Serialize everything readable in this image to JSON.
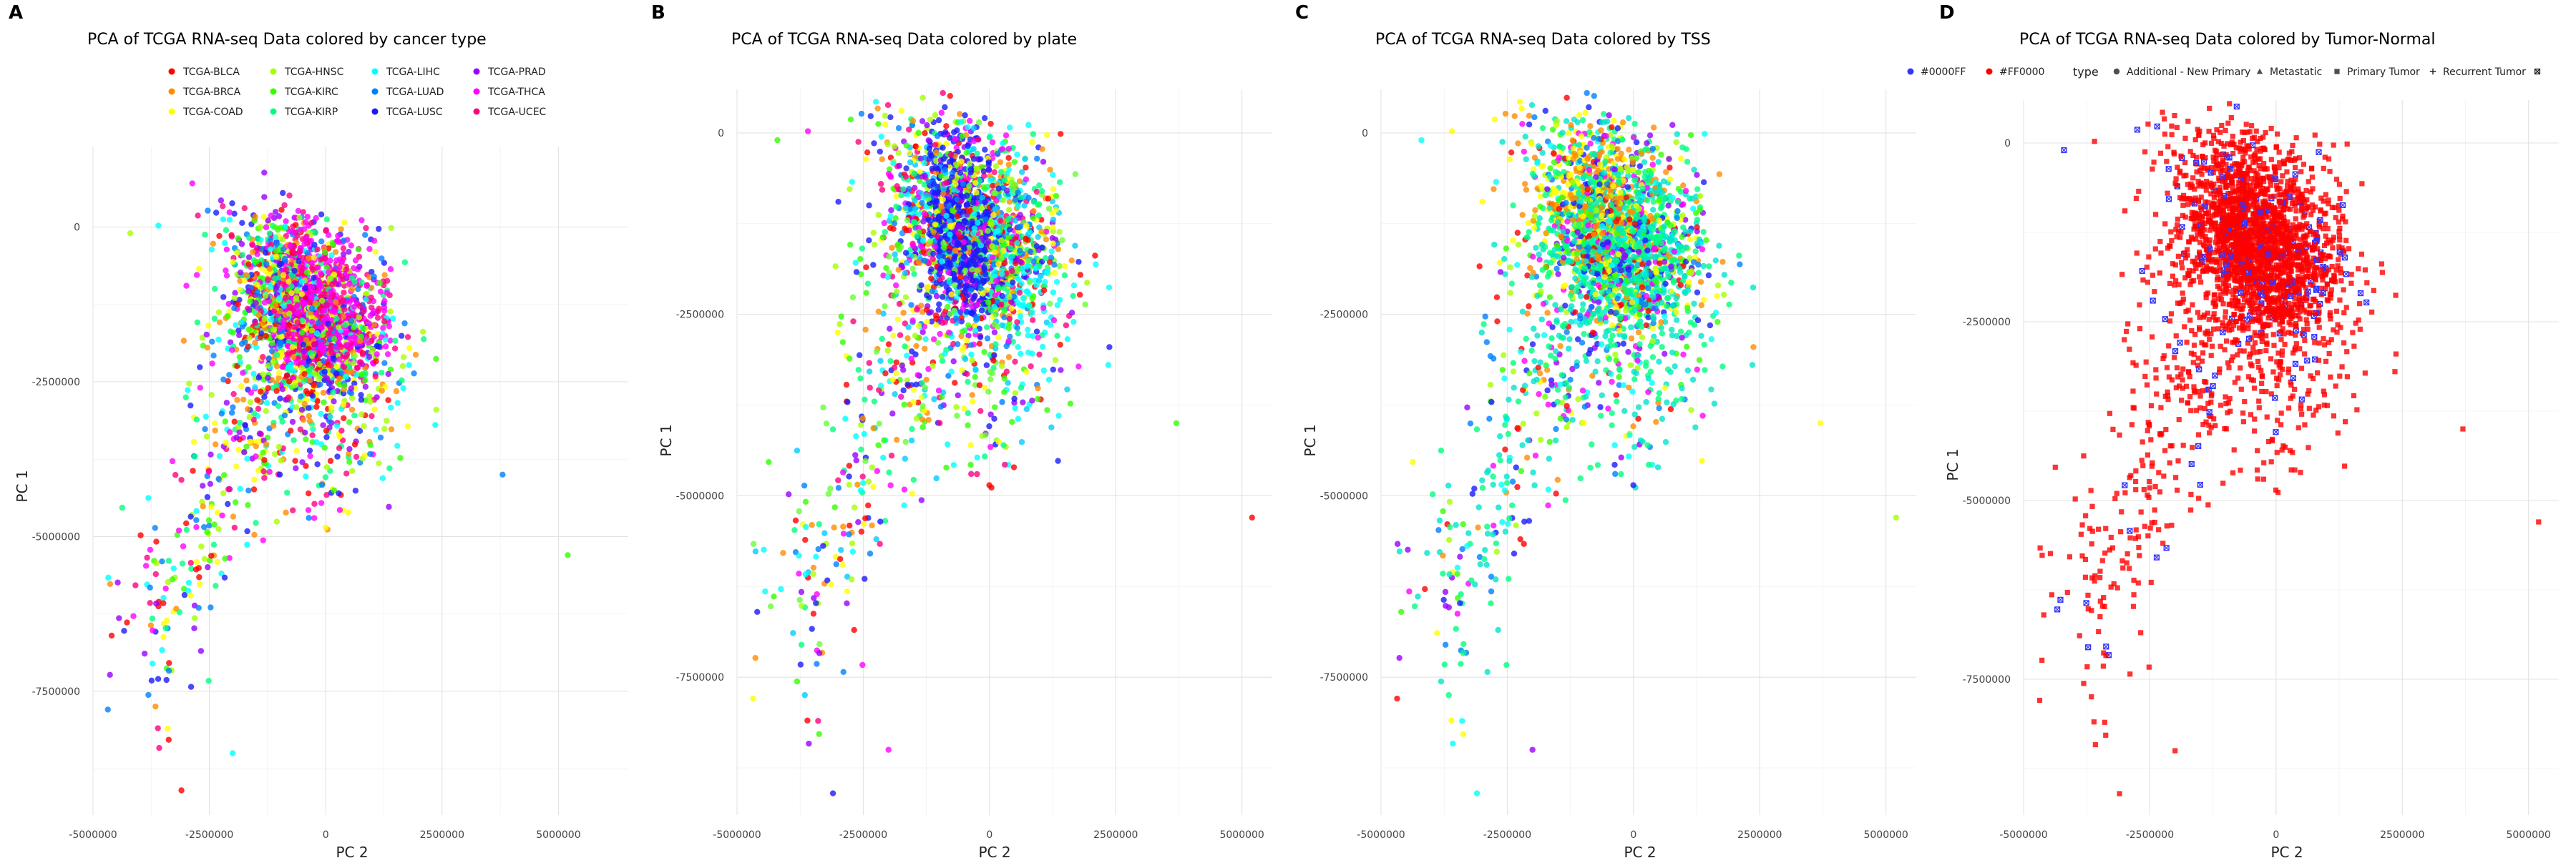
{
  "figure": {
    "panel_letters": [
      "A",
      "B",
      "C",
      "D"
    ]
  },
  "chart_data": [
    {
      "type": "scatter",
      "panel": "A",
      "title": "PCA of TCGA RNA-seq Data colored by cancer type",
      "xlabel": "PC 2",
      "ylabel": "PC 1",
      "xlim": [
        -5000000,
        6500000
      ],
      "ylim": [
        -9500000,
        1300000
      ],
      "xticks": [
        -5000000,
        -2500000,
        0,
        2500000,
        5000000
      ],
      "xtick_labels": [
        "-5000000",
        "-2500000",
        "0",
        "2500000",
        "5000000"
      ],
      "yticks": [
        0,
        -2500000,
        -5000000,
        -7500000
      ],
      "ytick_labels": [
        "0",
        "-2500000",
        "-5000000",
        "-7500000"
      ],
      "grid": true,
      "legend_position": "top",
      "legend": [
        {
          "name": "TCGA-BLCA",
          "color": "#FF0000"
        },
        {
          "name": "TCGA-BRCA",
          "color": "#FF8C00"
        },
        {
          "name": "TCGA-COAD",
          "color": "#FFFF00"
        },
        {
          "name": "TCGA-HNSC",
          "color": "#A6FF00"
        },
        {
          "name": "TCGA-KIRC",
          "color": "#33FF00"
        },
        {
          "name": "TCGA-KIRP",
          "color": "#00FF80"
        },
        {
          "name": "TCGA-LIHC",
          "color": "#00FFFF"
        },
        {
          "name": "TCGA-LUAD",
          "color": "#0080FF"
        },
        {
          "name": "TCGA-LUSC",
          "color": "#1A1AFF"
        },
        {
          "name": "TCGA-PRAD",
          "color": "#9900FF"
        },
        {
          "name": "TCGA-THCA",
          "color": "#FF00FF"
        },
        {
          "name": "TCGA-UCEC",
          "color": "#FF0080"
        }
      ],
      "outliers": [
        {
          "x": 5200000,
          "y": -5300000,
          "color": "#33FF00"
        },
        {
          "x": 3800000,
          "y": -4000000,
          "color": "#0080FF"
        },
        {
          "x": -4600000,
          "y": -6600000,
          "color": "#FF0000"
        },
        {
          "x": -3100000,
          "y": -9100000,
          "color": "#FF0000"
        },
        {
          "x": -2000000,
          "y": -8500000,
          "color": "#00FFFF"
        },
        {
          "x": -4200000,
          "y": -100000,
          "color": "#A6FF00"
        },
        {
          "x": -3600000,
          "y": -7300000,
          "color": "#1A1AFF"
        }
      ]
    },
    {
      "type": "scatter",
      "panel": "B",
      "title": "PCA of TCGA RNA-seq Data colored by plate",
      "xlabel": "PC 2",
      "ylabel": "PC 1",
      "xlim": [
        -5000000,
        5600000
      ],
      "ylim": [
        -9400000,
        600000
      ],
      "xticks": [
        -5000000,
        -2500000,
        0,
        2500000,
        5000000
      ],
      "xtick_labels": [
        "-5000000",
        "-2500000",
        "0",
        "2500000",
        "5000000"
      ],
      "yticks": [
        0,
        -2500000,
        -5000000,
        -7500000
      ],
      "ytick_labels": [
        "0",
        "-2500000",
        "-5000000",
        "-7500000"
      ],
      "grid": true,
      "legend_position": "none",
      "outliers": [
        {
          "x": 5200000,
          "y": -5300000,
          "color": "#FF0000"
        },
        {
          "x": 3700000,
          "y": -4000000,
          "color": "#33FF00"
        },
        {
          "x": -4600000,
          "y": -6600000,
          "color": "#1A1AFF"
        },
        {
          "x": -3100000,
          "y": -9100000,
          "color": "#1A1AFF"
        },
        {
          "x": -2000000,
          "y": -8500000,
          "color": "#FF00FF"
        },
        {
          "x": -4200000,
          "y": -100000,
          "color": "#33FF00"
        }
      ]
    },
    {
      "type": "scatter",
      "panel": "C",
      "title": "PCA of TCGA RNA-seq Data colored by TSS",
      "xlabel": "PC 2",
      "ylabel": "PC 1",
      "xlim": [
        -5000000,
        5600000
      ],
      "ylim": [
        -9400000,
        600000
      ],
      "xticks": [
        -5000000,
        -2500000,
        0,
        2500000,
        5000000
      ],
      "xtick_labels": [
        "-5000000",
        "-2500000",
        "0",
        "2500000",
        "5000000"
      ],
      "yticks": [
        0,
        -2500000,
        -5000000,
        -7500000
      ],
      "ytick_labels": [
        "0",
        "-2500000",
        "-5000000",
        "-7500000"
      ],
      "grid": true,
      "legend_position": "none",
      "outliers": [
        {
          "x": 5200000,
          "y": -5300000,
          "color": "#A6FF00"
        },
        {
          "x": 3700000,
          "y": -4000000,
          "color": "#FFFF00"
        },
        {
          "x": -4600000,
          "y": -6600000,
          "color": "#33FF00"
        },
        {
          "x": -3100000,
          "y": -9100000,
          "color": "#00FFFF"
        },
        {
          "x": -2000000,
          "y": -8500000,
          "color": "#9900FF"
        },
        {
          "x": -4200000,
          "y": -100000,
          "color": "#00FFFF"
        }
      ]
    },
    {
      "type": "scatter",
      "panel": "D",
      "title": "PCA of TCGA RNA-seq Data colored by Tumor-Normal",
      "xlabel": "PC 2",
      "ylabel": "PC 1",
      "xlim": [
        -5000000,
        5600000
      ],
      "ylim": [
        -9400000,
        600000
      ],
      "xticks": [
        -5000000,
        -2500000,
        0,
        2500000,
        5000000
      ],
      "xtick_labels": [
        "-5000000",
        "-2500000",
        "0",
        "2500000",
        "5000000"
      ],
      "yticks": [
        0,
        -2500000,
        -5000000,
        -7500000
      ],
      "ytick_labels": [
        "0",
        "-2500000",
        "-5000000",
        "-7500000"
      ],
      "grid": true,
      "legend_position": "top",
      "color_legend": [
        {
          "name": "#0000FF",
          "color": "#3333FF"
        },
        {
          "name": "#FF0000",
          "color": "#FF0000"
        }
      ],
      "shape_legend_title": "type",
      "shape_legend": [
        {
          "name": "Additional - New Primary",
          "shape": "circle"
        },
        {
          "name": "Metastatic",
          "shape": "triangle"
        },
        {
          "name": "Primary Tumor",
          "shape": "square"
        },
        {
          "name": "Recurrent Tumor",
          "shape": "plus"
        },
        {
          "name": "",
          "shape": "boxcross"
        }
      ],
      "outliers": [
        {
          "x": 5200000,
          "y": -5300000,
          "color": "#FF0000"
        },
        {
          "x": 3700000,
          "y": -4000000,
          "color": "#FF0000"
        },
        {
          "x": -4600000,
          "y": -6600000,
          "color": "#FF0000"
        },
        {
          "x": -3100000,
          "y": -9100000,
          "color": "#FF0000"
        },
        {
          "x": -2000000,
          "y": -8500000,
          "color": "#FF0000"
        },
        {
          "x": -4200000,
          "y": -100000,
          "color": "#3333FF"
        }
      ]
    }
  ],
  "palettes": {
    "plate": [
      "#FF0000",
      "#FF8C00",
      "#FFFF00",
      "#A6FF00",
      "#33FF00",
      "#00FF80",
      "#00FFFF",
      "#0080FF",
      "#1A1AFF",
      "#9900FF",
      "#FF00FF",
      "#FF0080",
      "#00CCFF",
      "#66FF33"
    ],
    "tss": [
      "#FF0000",
      "#FF8C00",
      "#FFFF00",
      "#A6FF00",
      "#33FF00",
      "#00FF80",
      "#00FFFF",
      "#00E5CC",
      "#0080FF",
      "#1A1AFF",
      "#9900FF",
      "#FF00FF"
    ]
  }
}
